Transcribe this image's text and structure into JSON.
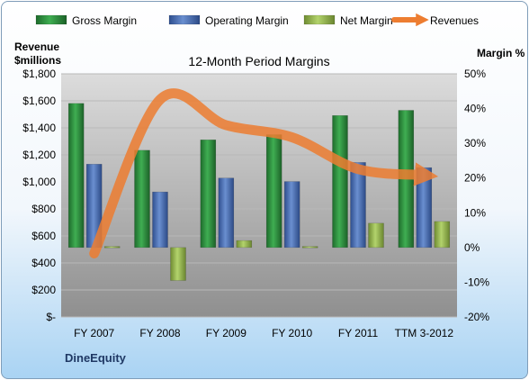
{
  "company": "DineEquity",
  "chart_data": {
    "type": "bar",
    "title": "12-Month Period Margins",
    "ylabel_left": "Revenue\n$millions",
    "ylabel_right": "Margin %",
    "categories": [
      "FY 2007",
      "FY 2008",
      "FY 2009",
      "FY 2010",
      "FY 2011",
      "TTM 3-2012"
    ],
    "left_axis": {
      "ylim": [
        0,
        1800
      ],
      "ticks": [
        "$-",
        "$200",
        "$400",
        "$600",
        "$800",
        "$1,000",
        "$1,200",
        "$1,400",
        "$1,600",
        "$1,800"
      ]
    },
    "right_axis": {
      "ylim": [
        -20,
        50
      ],
      "ticks": [
        "-20%",
        "-10%",
        "0%",
        "10%",
        "20%",
        "30%",
        "40%",
        "50%"
      ]
    },
    "series": [
      {
        "name": "Gross Margin",
        "type": "bar",
        "axis": "right",
        "color": "#2e8b3e",
        "values": [
          41.5,
          28,
          31,
          32.5,
          38,
          39.5
        ]
      },
      {
        "name": "Operating Margin",
        "type": "bar",
        "axis": "right",
        "color": "#4f73b8",
        "values": [
          24,
          16,
          20,
          19,
          24.5,
          23
        ]
      },
      {
        "name": "Net Margin",
        "type": "bar",
        "axis": "right",
        "color": "#98b954",
        "values": [
          0.3,
          -9.5,
          2,
          0.3,
          7,
          7.5
        ]
      },
      {
        "name": "Revenues",
        "type": "line",
        "axis": "left",
        "color": "#ed7d31",
        "values": [
          470,
          1610,
          1420,
          1330,
          1095,
          1050
        ]
      }
    ],
    "legend_position": "top",
    "grid": true
  }
}
